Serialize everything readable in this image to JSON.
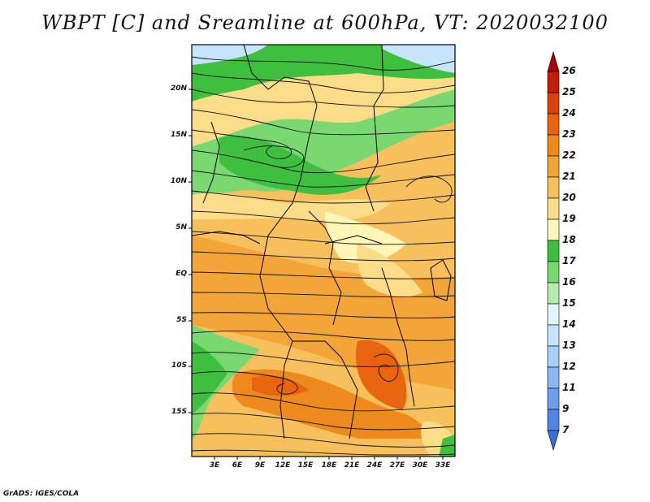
{
  "title": "WBPT [C] and Sreamline at 600hPa, VT: 2020032100",
  "credit": "GrADS: IGES/COLA",
  "map": {
    "lat_ticks": [
      "20N",
      "15N",
      "10N",
      "5N",
      "EQ",
      "5S",
      "10S",
      "15S"
    ],
    "lon_ticks": [
      "3E",
      "6E",
      "9E",
      "12E",
      "15E",
      "18E",
      "21E",
      "24E",
      "27E",
      "30E",
      "33E"
    ]
  },
  "colorbar": {
    "levels": [
      "7",
      "9",
      "11",
      "12",
      "13",
      "14",
      "15",
      "16",
      "17",
      "18",
      "19",
      "20",
      "21",
      "22",
      "23",
      "24",
      "25",
      "26"
    ],
    "colors": [
      "#3a6fd8",
      "#4f86e6",
      "#6d9fed",
      "#8ab8f3",
      "#a8cff8",
      "#c6e4fb",
      "#e2f5fb",
      "#b4ecab",
      "#79d870",
      "#3fbf3f",
      "#fff6b8",
      "#fbdc88",
      "#f7c05c",
      "#f4a538",
      "#ee8a1c",
      "#e8640f",
      "#d9400a",
      "#c41e06",
      "#a80000"
    ]
  }
}
